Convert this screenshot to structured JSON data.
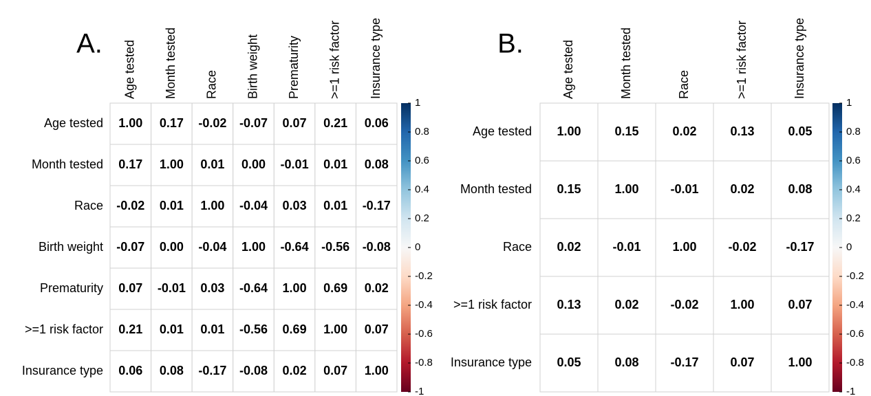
{
  "chart_data": [
    {
      "type": "heatmap",
      "title": "A.",
      "labels": [
        "Age tested",
        "Month tested",
        "Race",
        "Birth weight",
        "Prematurity",
        ">=1 risk factor",
        "Insurance type"
      ],
      "values": [
        [
          1.0,
          0.17,
          -0.02,
          -0.07,
          0.07,
          0.21,
          0.06
        ],
        [
          0.17,
          1.0,
          0.01,
          0.0,
          -0.01,
          0.01,
          0.08
        ],
        [
          -0.02,
          0.01,
          1.0,
          -0.04,
          0.03,
          0.01,
          -0.17
        ],
        [
          -0.07,
          0.0,
          -0.04,
          1.0,
          -0.64,
          -0.56,
          -0.08
        ],
        [
          0.07,
          -0.01,
          0.03,
          -0.64,
          1.0,
          0.69,
          0.02
        ],
        [
          0.21,
          0.01,
          0.01,
          -0.56,
          0.69,
          1.0,
          0.07
        ],
        [
          0.06,
          0.08,
          -0.17,
          -0.08,
          0.02,
          0.07,
          1.0
        ]
      ],
      "value_labels": [
        [
          "1.00",
          "0.17",
          "-0.02",
          "-0.07",
          "0.07",
          "0.21",
          "0.06"
        ],
        [
          "0.17",
          "1.00",
          "0.01",
          "0.00",
          "-0.01",
          "0.01",
          "0.08"
        ],
        [
          "-0.02",
          "0.01",
          "1.00",
          "-0.04",
          "0.03",
          "0.01",
          "-0.17"
        ],
        [
          "-0.07",
          "0.00",
          "-0.04",
          "1.00",
          "-0.64",
          "-0.56",
          "-0.08"
        ],
        [
          "0.07",
          "-0.01",
          "0.03",
          "-0.64",
          "1.00",
          "0.69",
          "0.02"
        ],
        [
          "0.21",
          "0.01",
          "0.01",
          "-0.56",
          "0.69",
          "1.00",
          "0.07"
        ],
        [
          "0.06",
          "0.08",
          "-0.17",
          "-0.08",
          "0.02",
          "0.07",
          "1.00"
        ]
      ],
      "clim": [
        -1,
        1
      ],
      "cticks": [
        1,
        0.8,
        0.6,
        0.4,
        0.2,
        0,
        -0.2,
        -0.4,
        -0.6,
        -0.8,
        -1
      ],
      "colorscale": [
        "#67001f",
        "#b2182b",
        "#d6604d",
        "#f4a582",
        "#fddbc7",
        "#f7f7f7",
        "#d1e5f0",
        "#92c5de",
        "#4393c3",
        "#2166ac",
        "#053061"
      ]
    },
    {
      "type": "heatmap",
      "title": "B.",
      "labels": [
        "Age tested",
        "Month tested",
        "Race",
        ">=1 risk factor",
        "Insurance type"
      ],
      "values": [
        [
          1.0,
          0.15,
          0.02,
          0.13,
          0.05
        ],
        [
          0.15,
          1.0,
          -0.01,
          0.02,
          0.08
        ],
        [
          0.02,
          -0.01,
          1.0,
          -0.02,
          -0.17
        ],
        [
          0.13,
          0.02,
          -0.02,
          1.0,
          0.07
        ],
        [
          0.05,
          0.08,
          -0.17,
          0.07,
          1.0
        ]
      ],
      "value_labels": [
        [
          "1.00",
          "0.15",
          "0.02",
          "0.13",
          "0.05"
        ],
        [
          "0.15",
          "1.00",
          "-0.01",
          "0.02",
          "0.08"
        ],
        [
          "0.02",
          "-0.01",
          "1.00",
          "-0.02",
          "-0.17"
        ],
        [
          "0.13",
          "0.02",
          "-0.02",
          "1.00",
          "0.07"
        ],
        [
          "0.05",
          "0.08",
          "-0.17",
          "0.07",
          "1.00"
        ]
      ],
      "clim": [
        -1,
        1
      ],
      "cticks": [
        1,
        0.8,
        0.6,
        0.4,
        0.2,
        0,
        -0.2,
        -0.4,
        -0.6,
        -0.8,
        -1
      ],
      "colorscale": [
        "#67001f",
        "#b2182b",
        "#d6604d",
        "#f4a582",
        "#fddbc7",
        "#f7f7f7",
        "#d1e5f0",
        "#92c5de",
        "#4393c3",
        "#2166ac",
        "#053061"
      ]
    }
  ]
}
